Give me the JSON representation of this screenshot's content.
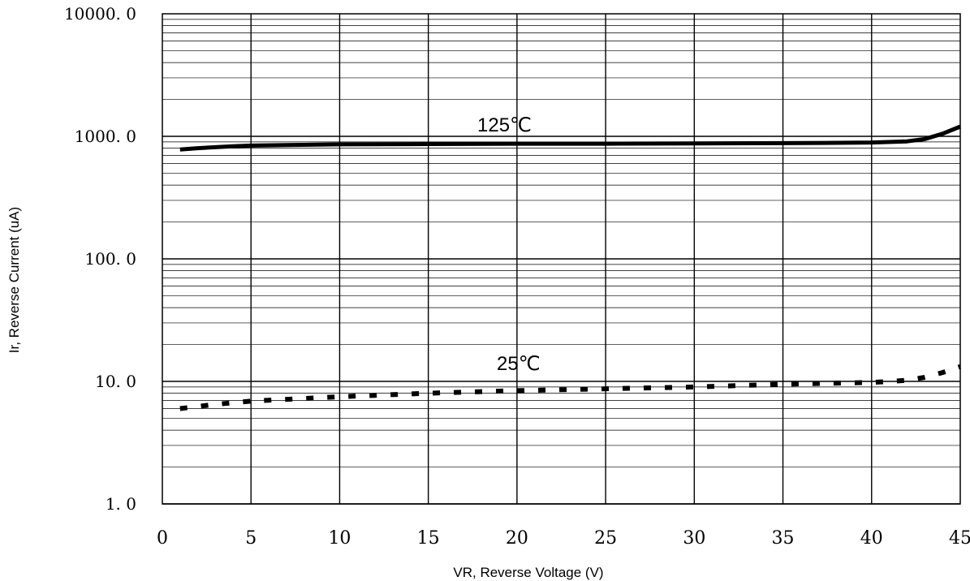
{
  "chart_data": {
    "type": "line",
    "xlabel": "VR, Reverse Voltage (V)",
    "ylabel": "Ir, Reverse Current (uA)",
    "xlim": [
      0,
      45
    ],
    "ylim": [
      1.0,
      10000.0
    ],
    "yscale": "log",
    "grid": true,
    "x_ticks": [
      "0",
      "5",
      "10",
      "15",
      "20",
      "25",
      "30",
      "35",
      "40",
      "45"
    ],
    "y_ticks": [
      "1. 0",
      "10. 0",
      "100. 0",
      "1000. 0",
      "10000. 0"
    ],
    "series": [
      {
        "name": "125℃",
        "style": "solid",
        "color": "#000000",
        "x": [
          1,
          2,
          3,
          4,
          5,
          7,
          10,
          15,
          20,
          25,
          30,
          35,
          38,
          40,
          42,
          43,
          44,
          45
        ],
        "y": [
          780,
          800,
          815,
          830,
          840,
          850,
          860,
          865,
          870,
          870,
          875,
          880,
          885,
          890,
          910,
          950,
          1050,
          1200
        ]
      },
      {
        "name": "25℃",
        "style": "dashed",
        "color": "#000000",
        "x": [
          1,
          3,
          5,
          10,
          15,
          20,
          25,
          30,
          35,
          40,
          42,
          43,
          44,
          45
        ],
        "y": [
          6.0,
          6.5,
          6.9,
          7.5,
          8.0,
          8.4,
          8.7,
          9.0,
          9.5,
          9.8,
          10.2,
          10.8,
          11.8,
          13.2
        ]
      }
    ]
  }
}
